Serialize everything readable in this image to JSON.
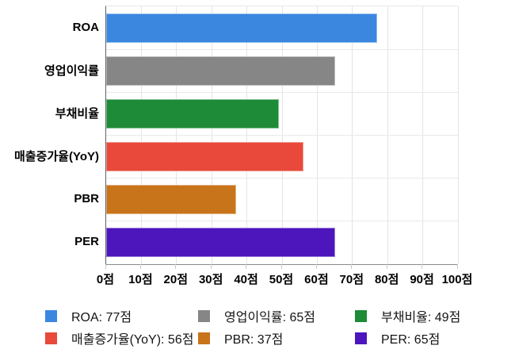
{
  "chart_data": {
    "type": "bar",
    "orientation": "horizontal",
    "categories": [
      "ROA",
      "영업이익률",
      "부채비율",
      "매출증가율(YoY)",
      "PBR",
      "PER"
    ],
    "values": [
      77,
      65,
      49,
      56,
      37,
      65
    ],
    "value_unit": "점",
    "series_colors": [
      "#3b87e0",
      "#868686",
      "#1d8b37",
      "#e8493a",
      "#c8741a",
      "#4c16bc"
    ],
    "xlim": [
      0,
      100
    ],
    "x_tick_step": 10,
    "x_tick_labels": [
      "0점",
      "10점",
      "20점",
      "30점",
      "40점",
      "50점",
      "60점",
      "70점",
      "80점",
      "90점",
      "100점"
    ],
    "grid": true,
    "legend_position": "bottom",
    "legend_items": [
      {
        "label": "ROA: 77점",
        "color": "#3b87e0"
      },
      {
        "label": "영업이익률: 65점",
        "color": "#868686"
      },
      {
        "label": "부채비율: 49점",
        "color": "#1d8b37"
      },
      {
        "label": "매출증가율(YoY): 56점",
        "color": "#e8493a"
      },
      {
        "label": "PBR: 37점",
        "color": "#c8741a"
      },
      {
        "label": "PER: 65점",
        "color": "#4c16bc"
      }
    ]
  },
  "colors": {
    "background": "#ffffff",
    "grid_line": "#e4e4e4",
    "axis_line": "#8a8a8a",
    "label_text": "#000000",
    "legend_text": "#141414"
  }
}
